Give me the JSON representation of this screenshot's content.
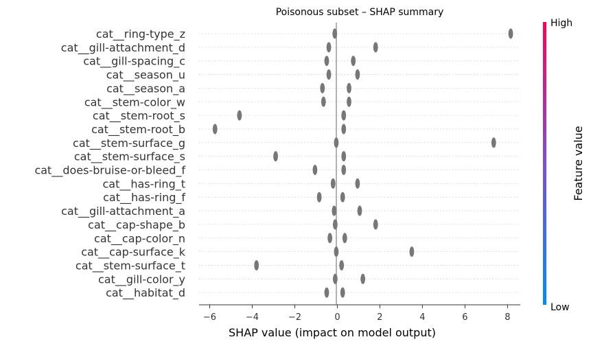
{
  "chart_data": {
    "type": "scatter",
    "title": "Poisonous subset – SHAP summary",
    "xlabel": "SHAP value (impact on model output)",
    "xlim": [
      -6.5,
      8.6
    ],
    "xticks": [
      -6,
      -4,
      -2,
      0,
      2,
      4,
      6,
      8
    ],
    "grid": false,
    "point_color": "#777777",
    "colorbar": {
      "label": "Feature value",
      "high_label": "High",
      "low_label": "Low",
      "colors": [
        "#008bfb",
        "#7c4fd2",
        "#ff0052"
      ]
    },
    "features": [
      {
        "name": "cat__ring-type_z",
        "values": [
          -0.12,
          8.15
        ]
      },
      {
        "name": "cat__gill-attachment_d",
        "values": [
          -0.4,
          1.8
        ]
      },
      {
        "name": "cat__gill-spacing_c",
        "values": [
          -0.5,
          0.75
        ]
      },
      {
        "name": "cat__season_u",
        "values": [
          -0.4,
          0.95
        ]
      },
      {
        "name": "cat__season_a",
        "values": [
          -0.7,
          0.55
        ]
      },
      {
        "name": "cat__stem-color_w",
        "values": [
          -0.65,
          0.55
        ]
      },
      {
        "name": "cat__stem-root_s",
        "values": [
          -4.6,
          0.3
        ]
      },
      {
        "name": "cat__stem-root_b",
        "values": [
          -5.75,
          0.3
        ]
      },
      {
        "name": "cat__stem-surface_g",
        "values": [
          -0.05,
          7.35
        ]
      },
      {
        "name": "cat__stem-surface_s",
        "values": [
          -2.9,
          0.3
        ]
      },
      {
        "name": "cat__does-bruise-or-bleed_f",
        "values": [
          -1.05,
          0.3
        ]
      },
      {
        "name": "cat__has-ring_t",
        "values": [
          -0.2,
          0.95
        ]
      },
      {
        "name": "cat__has-ring_f",
        "values": [
          -0.85,
          0.25
        ]
      },
      {
        "name": "cat__gill-attachment_a",
        "values": [
          -0.15,
          1.05
        ]
      },
      {
        "name": "cat__cap-shape_b",
        "values": [
          -0.1,
          1.8
        ]
      },
      {
        "name": "cat__cap-color_n",
        "values": [
          -0.35,
          0.35
        ]
      },
      {
        "name": "cat__cap-surface_k",
        "values": [
          -0.05,
          3.5
        ]
      },
      {
        "name": "cat__stem-surface_t",
        "values": [
          -3.8,
          0.2
        ]
      },
      {
        "name": "cat__gill-color_y",
        "values": [
          -0.1,
          1.2
        ]
      },
      {
        "name": "cat__habitat_d",
        "values": [
          -0.5,
          0.25
        ]
      }
    ]
  }
}
